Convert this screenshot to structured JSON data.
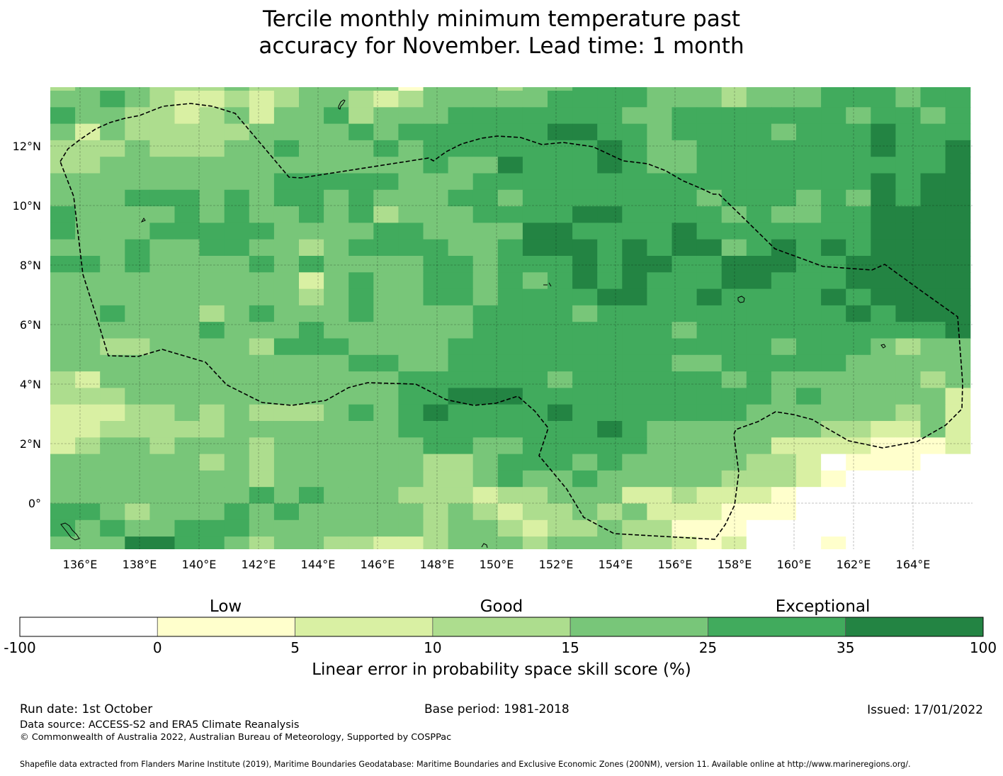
{
  "title": {
    "line1": "Tercile monthly minimum temperature past",
    "line2": "accuracy for November. Lead time: 1 month"
  },
  "colorbar": {
    "categories": [
      {
        "label": "Low",
        "at": 2
      },
      {
        "label": "Good",
        "at": 3.5
      },
      {
        "label": "Exceptional",
        "at": 6
      }
    ],
    "bounds": [
      "-100",
      "0",
      "5",
      "10",
      "15",
      "25",
      "35",
      "100"
    ],
    "colors": [
      "#ffffff",
      "#ffffcc",
      "#d9f0a3",
      "#addd8e",
      "#78c679",
      "#41ab5d",
      "#238443"
    ],
    "label": "Linear error in probability space skill score (%)"
  },
  "footer": {
    "run_date": "Run date: 1st October",
    "base_period": "Base period: 1981-2018",
    "issued": "Issued: 17/01/2022",
    "data_source": "Data source: ACCESS-S2 and ERA5 Climate Reanalysis",
    "copyright": "© Commonwealth of Australia 2022, Australian Bureau of Meteorology, Supported by COSPPac",
    "shapefile": "Shapefile data extracted from Flanders Marine Institute (2019), Maritime Boundaries Geodatabase: Maritime Boundaries and Exclusive Economic Zones (200NM), version 11. Available online at http://www.marineregions.org/."
  },
  "chart_data": {
    "type": "heatmap",
    "title": "Tercile monthly minimum temperature past accuracy for November. Lead time: 1 month",
    "xlabel": "",
    "ylabel": "",
    "lon_range": [
      135.0,
      166.0
    ],
    "lat_range": [
      -1.55,
      13.98
    ],
    "x_ticks": [
      {
        "value": 136,
        "label": "136°E"
      },
      {
        "value": 138,
        "label": "138°E"
      },
      {
        "value": 140,
        "label": "140°E"
      },
      {
        "value": 142,
        "label": "142°E"
      },
      {
        "value": 144,
        "label": "144°E"
      },
      {
        "value": 146,
        "label": "146°E"
      },
      {
        "value": 148,
        "label": "148°E"
      },
      {
        "value": 150,
        "label": "150°E"
      },
      {
        "value": 152,
        "label": "152°E"
      },
      {
        "value": 154,
        "label": "154°E"
      },
      {
        "value": 156,
        "label": "156°E"
      },
      {
        "value": 158,
        "label": "158°E"
      },
      {
        "value": 160,
        "label": "160°E"
      },
      {
        "value": 162,
        "label": "162°E"
      },
      {
        "value": 164,
        "label": "164°E"
      }
    ],
    "y_ticks": [
      {
        "value": 12,
        "label": "12°N"
      },
      {
        "value": 10,
        "label": "10°N"
      },
      {
        "value": 8,
        "label": "8°N"
      },
      {
        "value": 6,
        "label": "6°N"
      },
      {
        "value": 4,
        "label": "4°N"
      },
      {
        "value": 2,
        "label": "2°N"
      },
      {
        "value": 0,
        "label": "0°"
      }
    ],
    "grid": "on",
    "class_bounds": [
      -100,
      0,
      5,
      10,
      15,
      25,
      35,
      100
    ],
    "class_note": "digits index the colorbar classes 0-6; rows run north to south, columns west to east",
    "class_grid": [
      "3444333433444414443445554443444555455",
      "4454322323443234444455554443444555455",
      "5443323424453444555555544555555545545",
      "4243333344445455555566554555545556555",
      "3334333445444545555555654455555556556",
      "3344444444444445446555654455555555556",
      "4444444445555544455555555555555556566",
      "4445554545545444554555555545554546566",
      "5444454544545344455556655554544556666",
      "5444555554444554444665555655555556666",
      "4445445544345555445666565664565656666",
      "5545444454544445545556566556665566666",
      "4444444444245445545456565556655566666",
      "4444444444345445545555665565555656666",
      "4454443454445444455554555555555565666",
      "4444445444544444455555555455555555556",
      "4433444435554444555555555555545554344",
      "4444444444445544555555555445555544444",
      "3244444444444455555545555554544444434",
      "3334444444444455666555555555545444442",
      "2223343433345456555565555555444444342",
      "2233333444444455555555654444444332242",
      "2344344434444445544555554444422221112",
      "4444443434444443345554544444332011100",
      "4444444434444443345445444443332100000",
      "4444444454544433323344422322210000000",
      "5543444545444443432334342221110000000",
      "5454455544444443443233433111000000000",
      "4446655434433223444344433212000100000"
    ]
  }
}
